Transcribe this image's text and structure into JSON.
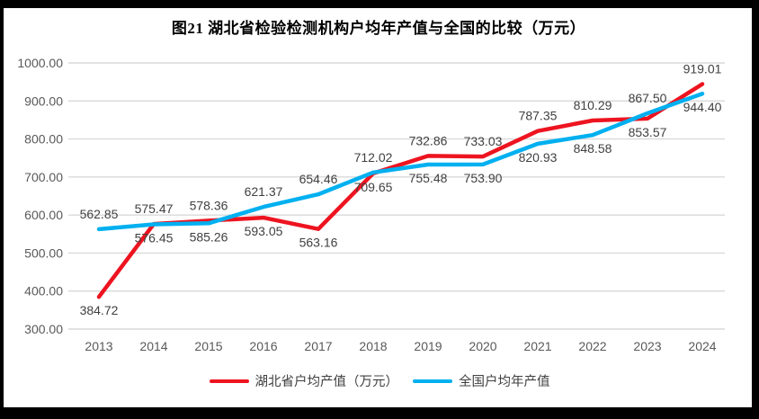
{
  "figure": {
    "title": "图21 湖北省检验检测机构户均年产值与全国的比较（万元）"
  },
  "chart_data": {
    "type": "line",
    "title": "图21 湖北省检验检测机构户均年产值与全国的比较（万元）",
    "categories": [
      "2013",
      "2014",
      "2015",
      "2016",
      "2017",
      "2018",
      "2019",
      "2020",
      "2021",
      "2022",
      "2023",
      "2024"
    ],
    "series": [
      {
        "name": "湖北省户均产值（万元）",
        "color": "#ED1420",
        "label_position": "below",
        "values": [
          384.72,
          576.45,
          585.26,
          593.05,
          563.16,
          709.65,
          755.48,
          753.9,
          820.93,
          848.58,
          853.57,
          944.4
        ]
      },
      {
        "name": "全国户均年产值",
        "color": "#00B0F0",
        "label_position": "above",
        "values": [
          562.85,
          575.47,
          578.36,
          621.37,
          654.46,
          712.02,
          732.86,
          733.03,
          787.35,
          810.29,
          867.5,
          919.01
        ]
      }
    ],
    "ylim": [
      300,
      1000
    ],
    "yticks": [
      "300.00",
      "400.00",
      "500.00",
      "600.00",
      "700.00",
      "800.00",
      "900.00",
      "1000.00"
    ],
    "grid": "horizontal",
    "legend_position": "bottom",
    "colors": {
      "grid": "#D9D9D9",
      "axis_labels": "#595959",
      "data_labels": "#404040",
      "title": "#000000",
      "legend_text": "#404040",
      "frame": "#000000",
      "background": "#FFFFFF"
    }
  }
}
